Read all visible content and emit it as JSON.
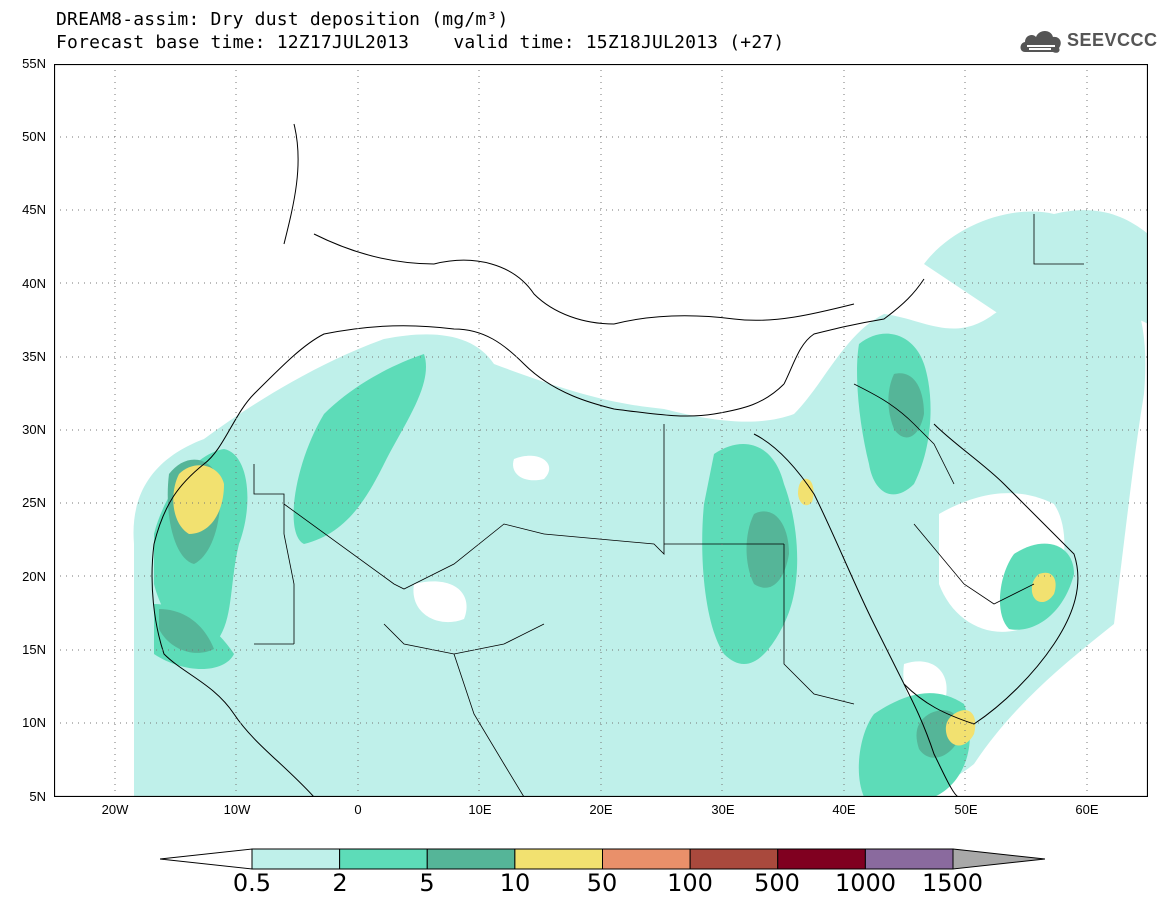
{
  "title": {
    "line1": "DREAM8-assim: Dry dust deposition (mg/m³)",
    "line2": "Forecast base time: 12Z17JUL2013    valid time: 15Z18JUL2013 (+27)"
  },
  "logo": {
    "text": "SEEVCCC",
    "icon": "cloud-icon"
  },
  "map": {
    "lat_labels": [
      "55N",
      "50N",
      "45N",
      "40N",
      "35N",
      "30N",
      "25N",
      "20N",
      "15N",
      "10N",
      "5N"
    ],
    "lon_labels": [
      "20W",
      "10W",
      "0",
      "10E",
      "20E",
      "30E",
      "40E",
      "50E",
      "60E"
    ],
    "lon_range": [
      -25,
      65
    ],
    "lat_range": [
      5,
      55
    ],
    "grid": "dotted"
  },
  "colorbar": {
    "levels": [
      "0.5",
      "2",
      "5",
      "10",
      "50",
      "100",
      "500",
      "1000",
      "1500"
    ],
    "colors": [
      "#bff0ea",
      "#5ddcb8",
      "#55b598",
      "#f2e170",
      "#e9906a",
      "#a9493d",
      "#800020",
      "#8a6a9e",
      "#a8a8a8"
    ]
  }
}
